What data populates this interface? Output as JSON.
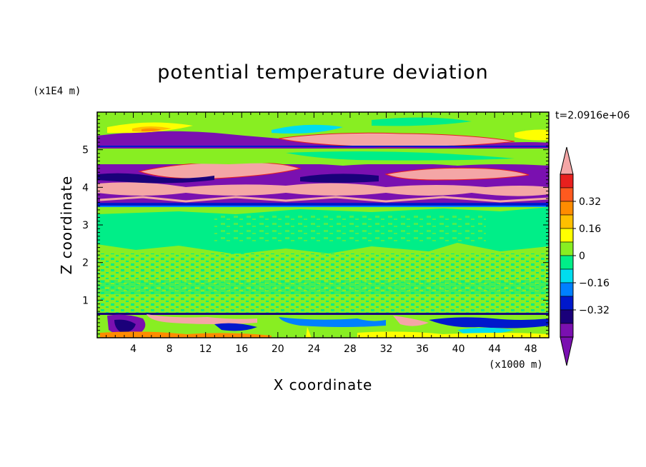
{
  "chart_data": {
    "type": "heatmap",
    "title": "potential temperature deviation",
    "xlabel": "X coordinate",
    "ylabel": "Z coordinate",
    "x_unit": "(x1000 m)",
    "y_unit": "(x1E4 m)",
    "time_label": "t=2.0916e+06",
    "xlim": [
      0,
      50
    ],
    "ylim": [
      0,
      6
    ],
    "x_ticks": [
      "4",
      "8",
      "12",
      "16",
      "20",
      "24",
      "28",
      "32",
      "36",
      "40",
      "44",
      "48"
    ],
    "y_ticks": [
      "1",
      "2",
      "3",
      "4",
      "5"
    ],
    "colorbar": {
      "levels": [
        -0.48,
        -0.4,
        -0.32,
        -0.24,
        -0.16,
        -0.08,
        0,
        0.08,
        0.16,
        0.24,
        0.32,
        0.4,
        0.48
      ],
      "labels": [
        "0.32",
        "0.16",
        "0",
        "−0.16",
        "−0.32"
      ],
      "label_values": [
        0.32,
        0.16,
        0,
        -0.16,
        -0.32
      ],
      "colors_high_to_low": [
        "#f4a6a6",
        "#e8201e",
        "#ff5a1f",
        "#ff8c00",
        "#ffc000",
        "#ffff00",
        "#88ee22",
        "#00ee88",
        "#00ddee",
        "#0080ff",
        "#0018cc",
        "#1a007a",
        "#7a10b0",
        "#7a10b0"
      ]
    },
    "field_bands": [
      {
        "z": [
          0,
          0.6
        ],
        "dominant": "mixed strong -0.4..+0.4"
      },
      {
        "z": [
          0.6,
          3.5
        ],
        "dominant": "0.00..0.08 with -0.08..0 patches"
      },
      {
        "z": [
          3.5,
          4.6
        ],
        "dominant": "alternating +0.48 and -0.48"
      },
      {
        "z": [
          4.6,
          5.05
        ],
        "dominant": "0..0.08"
      },
      {
        "z": [
          5.05,
          5.4
        ],
        "dominant": "+0.48 and -0.48 layers"
      },
      {
        "z": [
          5.4,
          6.0
        ],
        "dominant": "0..0.16 with warm patches"
      }
    ]
  }
}
